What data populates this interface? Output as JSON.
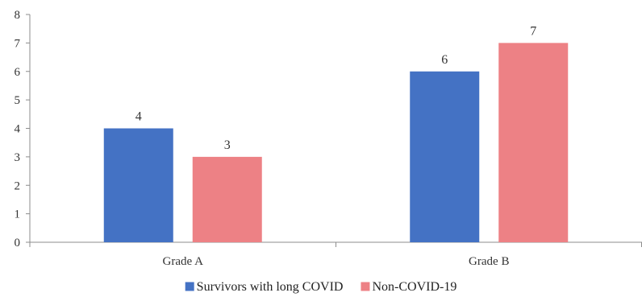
{
  "chart_data": {
    "type": "bar",
    "categories": [
      "Grade A",
      "Grade B"
    ],
    "series": [
      {
        "name": "Survivors with long COVID",
        "values": [
          4,
          6
        ],
        "color": "#4472C4"
      },
      {
        "name": "Non-COVID-19",
        "values": [
          3,
          7
        ],
        "color": "#ED8185"
      }
    ],
    "ylim": [
      0,
      8
    ],
    "yticks": [
      "0",
      "1",
      "2",
      "3",
      "4",
      "5",
      "6",
      "7",
      "8"
    ],
    "grid": false,
    "legend_position": "bottom"
  }
}
